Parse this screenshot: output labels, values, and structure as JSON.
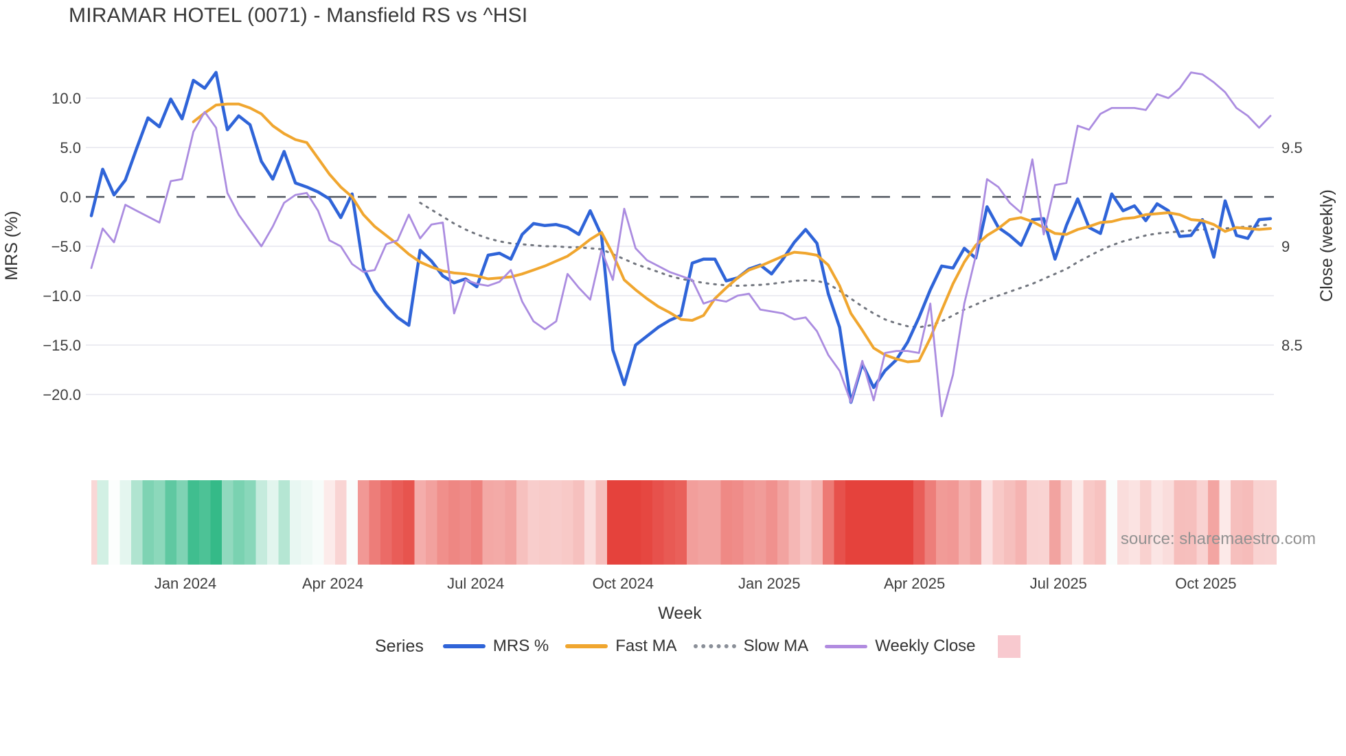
{
  "title": "MIRAMAR HOTEL (0071) - Mansfield RS vs ^HSI",
  "source": "source: sharemaestro.com",
  "legend": {
    "title": "Series",
    "items": [
      {
        "label": "MRS %",
        "swatch": "line",
        "color": "#2f64d8"
      },
      {
        "label": "Fast MA",
        "swatch": "line",
        "color": "#f0a62f"
      },
      {
        "label": "Slow MA",
        "swatch": "dotted",
        "color": "#8a8f98"
      },
      {
        "label": "Weekly Close",
        "swatch": "line",
        "color": "#b18be0"
      },
      {
        "label": "",
        "swatch": "box",
        "color": "#f8c9cf"
      }
    ]
  },
  "chart_data": {
    "type": "line",
    "weeks": 105,
    "x_axis": {
      "label": "Week",
      "ticks": [
        {
          "week": 8.3,
          "label": "Jan 2024"
        },
        {
          "week": 21.3,
          "label": "Apr 2024"
        },
        {
          "week": 33.9,
          "label": "Jul 2024"
        },
        {
          "week": 46.9,
          "label": "Oct 2024"
        },
        {
          "week": 59.8,
          "label": "Jan 2025"
        },
        {
          "week": 72.6,
          "label": "Apr 2025"
        },
        {
          "week": 85.3,
          "label": "Jul 2025"
        },
        {
          "week": 98.3,
          "label": "Oct 2025"
        }
      ]
    },
    "y_left": {
      "label": "MRS (%)",
      "tick_values": [
        10,
        5,
        0,
        -5,
        -10,
        -15,
        -20
      ],
      "tick_labels": [
        "10.0",
        "5.0",
        "0.0",
        "−5.0",
        "−10.0",
        "−15.0",
        "−20.0"
      ],
      "range": [
        -22.5,
        13.0
      ]
    },
    "y_right": {
      "label": "Close (weekly)",
      "tick_values": [
        9.5,
        9,
        8.5
      ],
      "tick_labels": [
        "9.5",
        "9",
        "8.5"
      ]
    },
    "zero_line": {
      "value": 0,
      "style": "dashed",
      "color": "#4d525b"
    },
    "grid": {
      "horizontal": true,
      "vertical": false,
      "color": "#ececf2"
    },
    "series": [
      {
        "name": "MRS %",
        "axis": "left",
        "color": "#2f64d8",
        "width": 4.5,
        "style": "solid",
        "values": [
          -1.9,
          2.8,
          0.2,
          1.7,
          4.9,
          8.0,
          7.1,
          9.9,
          7.9,
          11.8,
          11.0,
          12.6,
          6.8,
          8.2,
          7.3,
          3.6,
          1.8,
          4.6,
          1.4,
          1.0,
          0.5,
          -0.2,
          -2.1,
          0.3,
          -7.2,
          -9.5,
          -11.0,
          -12.2,
          -13.0,
          -5.4,
          -6.5,
          -8.0,
          -8.7,
          -8.3,
          -9.1,
          -5.9,
          -5.7,
          -6.3,
          -3.8,
          -2.7,
          -2.9,
          -2.8,
          -3.1,
          -3.8,
          -1.4,
          -3.9,
          -15.5,
          -19.0,
          -15.0,
          -14.1,
          -13.2,
          -12.5,
          -12.0,
          -6.7,
          -6.3,
          -6.3,
          -8.5,
          -8.2,
          -7.3,
          -6.9,
          -7.8,
          -6.3,
          -4.6,
          -3.3,
          -4.7,
          -9.8,
          -13.2,
          -20.8,
          -16.9,
          -19.3,
          -17.6,
          -16.5,
          -14.7,
          -12.2,
          -9.4,
          -7.0,
          -7.2,
          -5.2,
          -6.2,
          -1.0,
          -3.1,
          -3.9,
          -4.9,
          -2.3,
          -2.2,
          -6.3,
          -2.9,
          -0.2,
          -3.1,
          -3.7,
          0.3,
          -1.4,
          -0.9,
          -2.4,
          -0.7,
          -1.4,
          -4.0,
          -3.9,
          -2.3,
          -6.1,
          -0.4,
          -3.9,
          -4.2,
          -2.3,
          -2.2
        ]
      },
      {
        "name": "Fast MA",
        "axis": "left",
        "color": "#f0a62f",
        "width": 4,
        "style": "solid",
        "values": [
          null,
          null,
          null,
          null,
          null,
          null,
          null,
          null,
          null,
          7.6,
          8.5,
          9.3,
          9.4,
          9.4,
          9.0,
          8.4,
          7.2,
          6.4,
          5.8,
          5.5,
          3.9,
          2.3,
          1.0,
          0.0,
          -1.8,
          -3.0,
          -3.9,
          -4.8,
          -5.8,
          -6.6,
          -7.1,
          -7.5,
          -7.7,
          -7.8,
          -8.0,
          -8.3,
          -8.2,
          -8.1,
          -7.8,
          -7.4,
          -7.0,
          -6.5,
          -6.0,
          -5.2,
          -4.3,
          -3.6,
          -5.8,
          -8.4,
          -9.4,
          -10.3,
          -11.1,
          -11.7,
          -12.4,
          -12.5,
          -12.0,
          -10.3,
          -9.2,
          -8.2,
          -7.4,
          -7.0,
          -6.5,
          -6.0,
          -5.6,
          -5.7,
          -5.9,
          -6.9,
          -9.0,
          -11.8,
          -13.5,
          -15.3,
          -16.0,
          -16.4,
          -16.7,
          -16.6,
          -14.3,
          -11.5,
          -8.8,
          -6.6,
          -4.9,
          -3.9,
          -3.2,
          -2.3,
          -2.1,
          -2.5,
          -3.1,
          -3.7,
          -3.8,
          -3.3,
          -3.0,
          -2.6,
          -2.5,
          -2.2,
          -2.1,
          -1.8,
          -1.7,
          -1.6,
          -1.8,
          -2.3,
          -2.4,
          -2.8,
          -3.5,
          -3.1,
          -3.2,
          -3.3,
          -3.2
        ]
      },
      {
        "name": "Slow MA",
        "axis": "left",
        "color": "#71757e",
        "width": 3,
        "style": "dotted",
        "values": [
          null,
          null,
          null,
          null,
          null,
          null,
          null,
          null,
          null,
          null,
          null,
          null,
          null,
          null,
          null,
          null,
          null,
          null,
          null,
          null,
          null,
          null,
          null,
          null,
          null,
          null,
          null,
          null,
          null,
          -0.6,
          -1.3,
          -2.0,
          -2.7,
          -3.3,
          -3.8,
          -4.2,
          -4.5,
          -4.7,
          -4.8,
          -4.9,
          -5.0,
          -5.0,
          -5.1,
          -5.1,
          -5.2,
          -5.3,
          -5.8,
          -6.3,
          -6.8,
          -7.2,
          -7.6,
          -8.0,
          -8.3,
          -8.5,
          -8.7,
          -8.85,
          -8.95,
          -9.0,
          -8.95,
          -8.9,
          -8.8,
          -8.65,
          -8.5,
          -8.45,
          -8.5,
          -8.8,
          -9.5,
          -10.3,
          -11.1,
          -11.8,
          -12.4,
          -12.8,
          -13.1,
          -13.2,
          -13.0,
          -12.6,
          -12.0,
          -11.4,
          -10.9,
          -10.4,
          -10.0,
          -9.6,
          -9.2,
          -8.8,
          -8.3,
          -7.8,
          -7.3,
          -6.6,
          -6.0,
          -5.4,
          -4.9,
          -4.5,
          -4.2,
          -3.9,
          -3.7,
          -3.6,
          -3.5,
          -3.4,
          -3.3,
          -3.25,
          -3.2,
          -3.1,
          -3.0,
          -2.9,
          -2.8
        ]
      },
      {
        "name": "Weekly Close",
        "axis": "right",
        "color": "#ab8ce0",
        "width": 2.8,
        "style": "solid",
        "values": [
          8.89,
          9.09,
          9.02,
          9.21,
          9.18,
          9.15,
          9.12,
          9.33,
          9.34,
          9.58,
          9.68,
          9.6,
          9.27,
          9.16,
          9.08,
          9.0,
          9.1,
          9.22,
          9.26,
          9.27,
          9.18,
          9.03,
          9.0,
          8.91,
          8.87,
          8.88,
          9.01,
          9.03,
          9.16,
          9.04,
          9.11,
          9.12,
          8.66,
          8.83,
          8.81,
          8.8,
          8.82,
          8.88,
          8.72,
          8.62,
          8.58,
          8.62,
          8.86,
          8.79,
          8.73,
          8.98,
          8.83,
          9.19,
          8.99,
          8.93,
          8.9,
          8.87,
          8.85,
          8.83,
          8.71,
          8.73,
          8.72,
          8.75,
          8.76,
          8.68,
          8.67,
          8.66,
          8.63,
          8.64,
          8.57,
          8.45,
          8.37,
          8.21,
          8.42,
          8.22,
          8.46,
          8.47,
          8.47,
          8.46,
          8.71,
          8.14,
          8.35,
          8.71,
          8.95,
          9.34,
          9.3,
          9.22,
          9.17,
          9.44,
          9.06,
          9.31,
          9.32,
          9.61,
          9.59,
          9.67,
          9.7,
          9.7,
          9.7,
          9.69,
          9.77,
          9.75,
          9.8,
          9.88,
          9.87,
          9.83,
          9.78,
          9.7,
          9.66,
          9.6,
          9.66
        ]
      }
    ],
    "heat_strip": {
      "source_series": "MRS %",
      "positive_color": "#35ba88",
      "negative_color": "#e5423c",
      "neutral_color": "#ffffff",
      "positive_saturation_at": 12.5,
      "negative_saturation_at": 16
    }
  }
}
